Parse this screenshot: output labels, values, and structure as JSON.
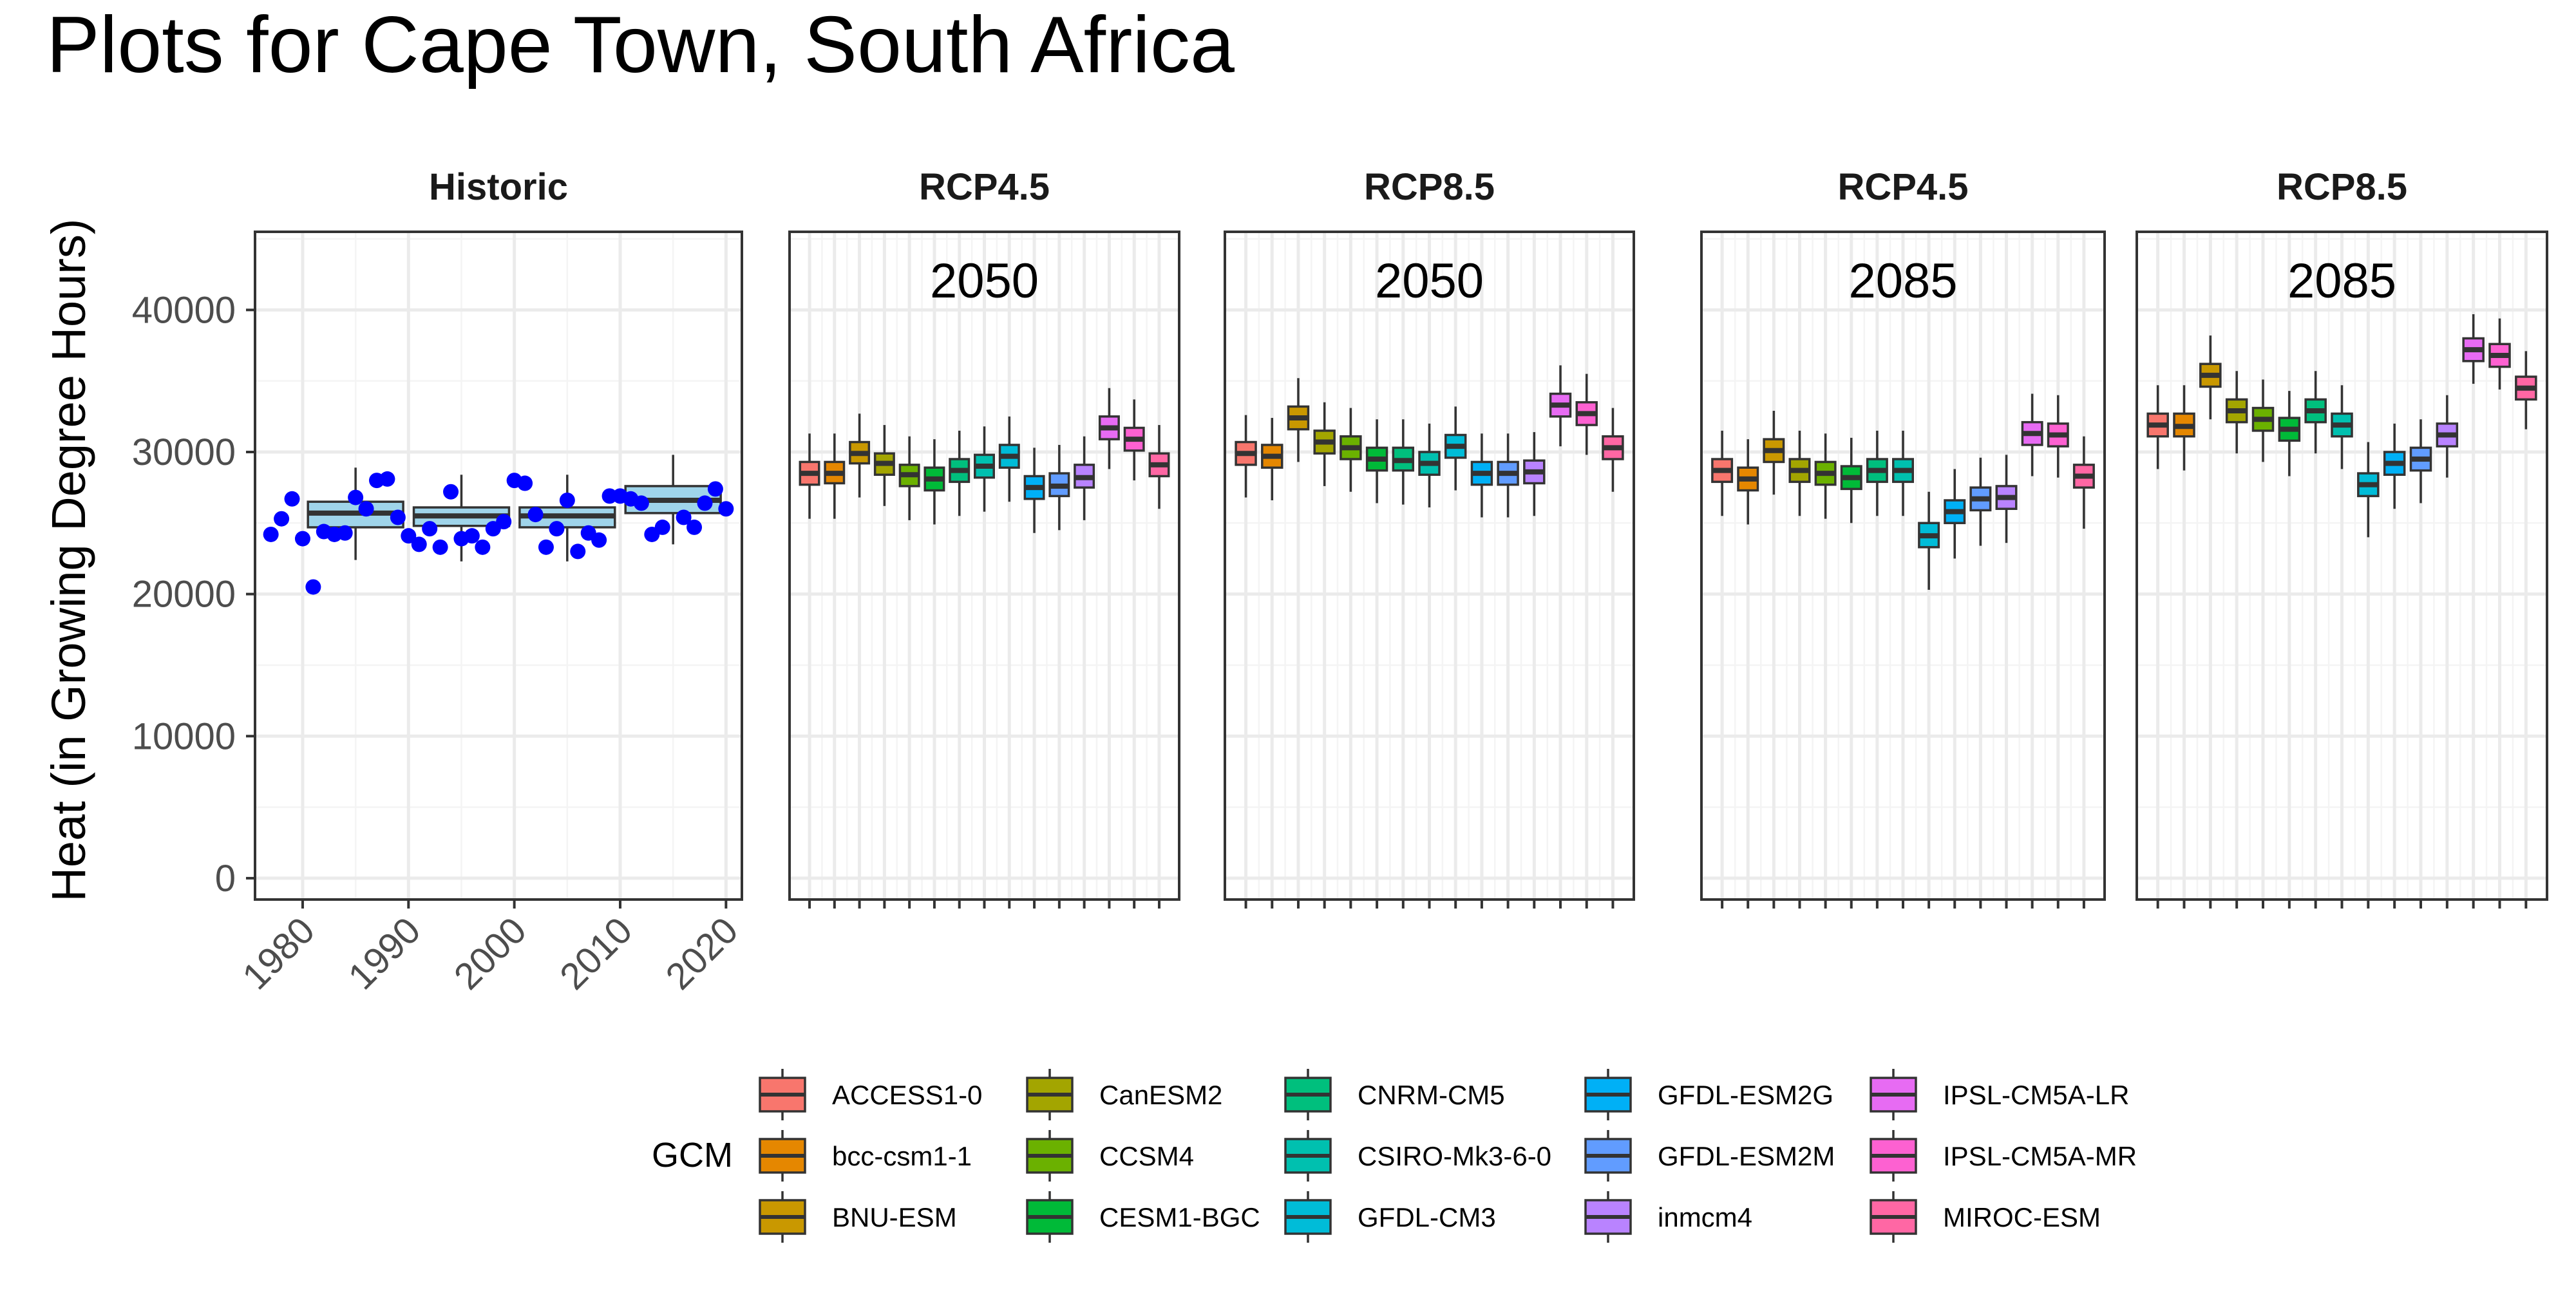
{
  "title": "Plots for Cape Town, South Africa",
  "colors": {
    "historic_box_fill": "#9fd4ea",
    "historic_point": "#0000ff",
    "grid_major": "#ebebeb",
    "grid_minor": "#f4f4f4",
    "panel_border": "#333333",
    "strip_text": "#1a1a1a",
    "axis_text": "#4d4d4d"
  },
  "chart_data": {
    "type": "box",
    "ylabel": "Heat (in Growing Degree Hours)",
    "ylim": [
      -1500,
      45500
    ],
    "y_ticks": [
      0,
      10000,
      20000,
      30000,
      40000
    ],
    "y_tick_labels": [
      "0",
      "10000",
      "20000",
      "30000",
      "40000"
    ],
    "grid": true,
    "legend": {
      "position": "bottom",
      "title": "GCM",
      "labels": [
        "ACCESS1-0",
        "bcc-csm1-1",
        "BNU-ESM",
        "CanESM2",
        "CCSM4",
        "CESM1-BGC",
        "CNRM-CM5",
        "CSIRO-Mk3-6-0",
        "GFDL-CM3",
        "GFDL-ESM2G",
        "GFDL-ESM2M",
        "inmcm4",
        "IPSL-CM5A-LR",
        "IPSL-CM5A-MR",
        "MIROC-ESM"
      ],
      "colors": [
        "#F8766D",
        "#E58700",
        "#C99800",
        "#A3A500",
        "#6BB100",
        "#00BA38",
        "#00BF7D",
        "#00C0AF",
        "#00BCD8",
        "#00B0F6",
        "#619CFF",
        "#B983FF",
        "#E76BF3",
        "#FD61D1",
        "#FF67A4"
      ]
    },
    "panels": [
      {
        "strip": "Historic",
        "x_ticks": [
          1980,
          1990,
          2000,
          2010,
          2020
        ],
        "x_tick_labels": [
          "1980",
          "1990",
          "2000",
          "2010",
          "2020"
        ],
        "xlim": [
          1975.5,
          2021.5
        ],
        "boxes": [
          {
            "decade": 1980,
            "q1": 24700,
            "median": 25700,
            "q3": 26500,
            "lo": 22400,
            "hi": 28900
          },
          {
            "decade": 1990,
            "q1": 24800,
            "median": 25500,
            "q3": 26100,
            "lo": 22300,
            "hi": 28400
          },
          {
            "decade": 2000,
            "q1": 24700,
            "median": 25500,
            "q3": 26100,
            "lo": 22300,
            "hi": 28400
          },
          {
            "decade": 2010,
            "q1": 25700,
            "median": 26600,
            "q3": 27600,
            "lo": 23500,
            "hi": 29800
          }
        ],
        "points": [
          {
            "x": 1977,
            "y": 24200
          },
          {
            "x": 1978,
            "y": 25300
          },
          {
            "x": 1979,
            "y": 26700
          },
          {
            "x": 1980,
            "y": 23900
          },
          {
            "x": 1981,
            "y": 20500
          },
          {
            "x": 1982,
            "y": 24400
          },
          {
            "x": 1983,
            "y": 24200
          },
          {
            "x": 1984,
            "y": 24300
          },
          {
            "x": 1985,
            "y": 26800
          },
          {
            "x": 1986,
            "y": 26000
          },
          {
            "x": 1987,
            "y": 28000
          },
          {
            "x": 1988,
            "y": 28100
          },
          {
            "x": 1989,
            "y": 25400
          },
          {
            "x": 1990,
            "y": 24100
          },
          {
            "x": 1991,
            "y": 23500
          },
          {
            "x": 1992,
            "y": 24600
          },
          {
            "x": 1993,
            "y": 23300
          },
          {
            "x": 1994,
            "y": 27200
          },
          {
            "x": 1995,
            "y": 23900
          },
          {
            "x": 1996,
            "y": 24100
          },
          {
            "x": 1997,
            "y": 23300
          },
          {
            "x": 1998,
            "y": 24600
          },
          {
            "x": 1999,
            "y": 25100
          },
          {
            "x": 2000,
            "y": 28000
          },
          {
            "x": 2001,
            "y": 27800
          },
          {
            "x": 2002,
            "y": 25600
          },
          {
            "x": 2003,
            "y": 23300
          },
          {
            "x": 2004,
            "y": 24600
          },
          {
            "x": 2005,
            "y": 26600
          },
          {
            "x": 2006,
            "y": 23000
          },
          {
            "x": 2007,
            "y": 24300
          },
          {
            "x": 2008,
            "y": 23800
          },
          {
            "x": 2009,
            "y": 26900
          },
          {
            "x": 2010,
            "y": 26900
          },
          {
            "x": 2011,
            "y": 26700
          },
          {
            "x": 2012,
            "y": 26400
          },
          {
            "x": 2013,
            "y": 24200
          },
          {
            "x": 2014,
            "y": 24700
          },
          {
            "x": 2016,
            "y": 25400
          },
          {
            "x": 2017,
            "y": 24700
          },
          {
            "x": 2018,
            "y": 26400
          },
          {
            "x": 2019,
            "y": 27400
          },
          {
            "x": 2020,
            "y": 26000
          }
        ]
      },
      {
        "strip": "RCP4.5",
        "year": "2050",
        "boxes": [
          {
            "gcm": "ACCESS1-0",
            "q1": 27700,
            "median": 28500,
            "q3": 29300,
            "lo": 25300,
            "hi": 31300
          },
          {
            "gcm": "bcc-csm1-1",
            "q1": 27800,
            "median": 28500,
            "q3": 29300,
            "lo": 25300,
            "hi": 31300
          },
          {
            "gcm": "BNU-ESM",
            "q1": 29200,
            "median": 29900,
            "q3": 30700,
            "lo": 26800,
            "hi": 32700
          },
          {
            "gcm": "CanESM2",
            "q1": 28400,
            "median": 29200,
            "q3": 29900,
            "lo": 26200,
            "hi": 31900
          },
          {
            "gcm": "CCSM4",
            "q1": 27600,
            "median": 28400,
            "q3": 29100,
            "lo": 25200,
            "hi": 31100
          },
          {
            "gcm": "CESM1-BGC",
            "q1": 27300,
            "median": 28100,
            "q3": 28900,
            "lo": 24900,
            "hi": 30900
          },
          {
            "gcm": "CNRM-CM5",
            "q1": 27900,
            "median": 28700,
            "q3": 29500,
            "lo": 25500,
            "hi": 31500
          },
          {
            "gcm": "CSIRO-Mk3-6-0",
            "q1": 28200,
            "median": 29000,
            "q3": 29800,
            "lo": 25800,
            "hi": 31800
          },
          {
            "gcm": "GFDL-CM3",
            "q1": 28900,
            "median": 29700,
            "q3": 30500,
            "lo": 26500,
            "hi": 32500
          },
          {
            "gcm": "GFDL-ESM2G",
            "q1": 26700,
            "median": 27500,
            "q3": 28300,
            "lo": 24300,
            "hi": 30300
          },
          {
            "gcm": "GFDL-ESM2M",
            "q1": 26900,
            "median": 27600,
            "q3": 28500,
            "lo": 24500,
            "hi": 30500
          },
          {
            "gcm": "inmcm4",
            "q1": 27500,
            "median": 28200,
            "q3": 29100,
            "lo": 25200,
            "hi": 31100
          },
          {
            "gcm": "IPSL-CM5A-LR",
            "q1": 30900,
            "median": 31700,
            "q3": 32500,
            "lo": 28800,
            "hi": 34500
          },
          {
            "gcm": "IPSL-CM5A-MR",
            "q1": 30100,
            "median": 30900,
            "q3": 31700,
            "lo": 28000,
            "hi": 33700
          },
          {
            "gcm": "MIROC-ESM",
            "q1": 28300,
            "median": 29100,
            "q3": 29900,
            "lo": 26000,
            "hi": 31900
          }
        ]
      },
      {
        "strip": "RCP8.5",
        "year": "2050",
        "boxes": [
          {
            "gcm": "ACCESS1-0",
            "q1": 29100,
            "median": 29900,
            "q3": 30700,
            "lo": 26800,
            "hi": 32600
          },
          {
            "gcm": "bcc-csm1-1",
            "q1": 28900,
            "median": 29700,
            "q3": 30500,
            "lo": 26600,
            "hi": 32400
          },
          {
            "gcm": "BNU-ESM",
            "q1": 31600,
            "median": 32400,
            "q3": 33200,
            "lo": 29300,
            "hi": 35200
          },
          {
            "gcm": "CanESM2",
            "q1": 29900,
            "median": 30700,
            "q3": 31500,
            "lo": 27600,
            "hi": 33500
          },
          {
            "gcm": "CCSM4",
            "q1": 29500,
            "median": 30300,
            "q3": 31100,
            "lo": 27200,
            "hi": 33100
          },
          {
            "gcm": "CESM1-BGC",
            "q1": 28700,
            "median": 29500,
            "q3": 30300,
            "lo": 26400,
            "hi": 32300
          },
          {
            "gcm": "CNRM-CM5",
            "q1": 28700,
            "median": 29400,
            "q3": 30300,
            "lo": 26300,
            "hi": 32300
          },
          {
            "gcm": "CSIRO-Mk3-6-0",
            "q1": 28400,
            "median": 29200,
            "q3": 30000,
            "lo": 26100,
            "hi": 32000
          },
          {
            "gcm": "GFDL-CM3",
            "q1": 29600,
            "median": 30400,
            "q3": 31200,
            "lo": 27300,
            "hi": 33200
          },
          {
            "gcm": "GFDL-ESM2G",
            "q1": 27700,
            "median": 28500,
            "q3": 29300,
            "lo": 25400,
            "hi": 31300
          },
          {
            "gcm": "GFDL-ESM2M",
            "q1": 27700,
            "median": 28500,
            "q3": 29300,
            "lo": 25400,
            "hi": 31300
          },
          {
            "gcm": "inmcm4",
            "q1": 27800,
            "median": 28600,
            "q3": 29400,
            "lo": 25500,
            "hi": 31400
          },
          {
            "gcm": "IPSL-CM5A-LR",
            "q1": 32500,
            "median": 33300,
            "q3": 34100,
            "lo": 30400,
            "hi": 36100
          },
          {
            "gcm": "IPSL-CM5A-MR",
            "q1": 31900,
            "median": 32700,
            "q3": 33500,
            "lo": 29800,
            "hi": 35500
          },
          {
            "gcm": "MIROC-ESM",
            "q1": 29500,
            "median": 30300,
            "q3": 31100,
            "lo": 27200,
            "hi": 33100
          }
        ]
      },
      {
        "strip": "RCP4.5",
        "year": "2085",
        "boxes": [
          {
            "gcm": "ACCESS1-0",
            "q1": 27900,
            "median": 28700,
            "q3": 29500,
            "lo": 25500,
            "hi": 31500
          },
          {
            "gcm": "bcc-csm1-1",
            "q1": 27300,
            "median": 28100,
            "q3": 28900,
            "lo": 24900,
            "hi": 30900
          },
          {
            "gcm": "BNU-ESM",
            "q1": 29300,
            "median": 30100,
            "q3": 30900,
            "lo": 27000,
            "hi": 32900
          },
          {
            "gcm": "CanESM2",
            "q1": 27900,
            "median": 28700,
            "q3": 29500,
            "lo": 25500,
            "hi": 31500
          },
          {
            "gcm": "CCSM4",
            "q1": 27700,
            "median": 28500,
            "q3": 29300,
            "lo": 25300,
            "hi": 31300
          },
          {
            "gcm": "CESM1-BGC",
            "q1": 27400,
            "median": 28200,
            "q3": 29000,
            "lo": 25000,
            "hi": 31000
          },
          {
            "gcm": "CNRM-CM5",
            "q1": 27900,
            "median": 28700,
            "q3": 29500,
            "lo": 25500,
            "hi": 31500
          },
          {
            "gcm": "CSIRO-Mk3-6-0",
            "q1": 27900,
            "median": 28700,
            "q3": 29500,
            "lo": 25500,
            "hi": 31500
          },
          {
            "gcm": "GFDL-CM3",
            "q1": 23300,
            "median": 24100,
            "q3": 25000,
            "lo": 20300,
            "hi": 27200
          },
          {
            "gcm": "GFDL-ESM2G",
            "q1": 25000,
            "median": 25800,
            "q3": 26600,
            "lo": 22500,
            "hi": 28800
          },
          {
            "gcm": "GFDL-ESM2M",
            "q1": 25900,
            "median": 26700,
            "q3": 27500,
            "lo": 23400,
            "hi": 29600
          },
          {
            "gcm": "inmcm4",
            "q1": 26000,
            "median": 26800,
            "q3": 27600,
            "lo": 23600,
            "hi": 29800
          },
          {
            "gcm": "IPSL-CM5A-LR",
            "q1": 30500,
            "median": 31300,
            "q3": 32100,
            "lo": 28300,
            "hi": 34100
          },
          {
            "gcm": "IPSL-CM5A-MR",
            "q1": 30400,
            "median": 31200,
            "q3": 32000,
            "lo": 28200,
            "hi": 34000
          },
          {
            "gcm": "MIROC-ESM",
            "q1": 27500,
            "median": 28300,
            "q3": 29100,
            "lo": 24600,
            "hi": 31100
          }
        ]
      },
      {
        "strip": "RCP8.5",
        "year": "2085",
        "boxes": [
          {
            "gcm": "ACCESS1-0",
            "q1": 31100,
            "median": 31900,
            "q3": 32700,
            "lo": 28800,
            "hi": 34700
          },
          {
            "gcm": "bcc-csm1-1",
            "q1": 31100,
            "median": 31800,
            "q3": 32700,
            "lo": 28700,
            "hi": 34700
          },
          {
            "gcm": "BNU-ESM",
            "q1": 34600,
            "median": 35400,
            "q3": 36200,
            "lo": 32300,
            "hi": 38200
          },
          {
            "gcm": "CanESM2",
            "q1": 32100,
            "median": 32900,
            "q3": 33700,
            "lo": 29900,
            "hi": 35700
          },
          {
            "gcm": "CCSM4",
            "q1": 31500,
            "median": 32300,
            "q3": 33100,
            "lo": 29300,
            "hi": 35100
          },
          {
            "gcm": "CESM1-BGC",
            "q1": 30800,
            "median": 31600,
            "q3": 32400,
            "lo": 28300,
            "hi": 34300
          },
          {
            "gcm": "CNRM-CM5",
            "q1": 32100,
            "median": 32900,
            "q3": 33700,
            "lo": 29900,
            "hi": 35700
          },
          {
            "gcm": "CSIRO-Mk3-6-0",
            "q1": 31100,
            "median": 31900,
            "q3": 32700,
            "lo": 28800,
            "hi": 34700
          },
          {
            "gcm": "GFDL-CM3",
            "q1": 26900,
            "median": 27700,
            "q3": 28500,
            "lo": 24000,
            "hi": 30700
          },
          {
            "gcm": "GFDL-ESM2G",
            "q1": 28400,
            "median": 29200,
            "q3": 30000,
            "lo": 26000,
            "hi": 32000
          },
          {
            "gcm": "GFDL-ESM2M",
            "q1": 28700,
            "median": 29500,
            "q3": 30300,
            "lo": 26400,
            "hi": 32300
          },
          {
            "gcm": "inmcm4",
            "q1": 30400,
            "median": 31200,
            "q3": 32000,
            "lo": 28200,
            "hi": 34000
          },
          {
            "gcm": "IPSL-CM5A-LR",
            "q1": 36400,
            "median": 37200,
            "q3": 38000,
            "lo": 34800,
            "hi": 39700
          },
          {
            "gcm": "IPSL-CM5A-MR",
            "q1": 36000,
            "median": 36800,
            "q3": 37600,
            "lo": 34400,
            "hi": 39400
          },
          {
            "gcm": "MIROC-ESM",
            "q1": 33700,
            "median": 34500,
            "q3": 35300,
            "lo": 31600,
            "hi": 37100
          }
        ]
      }
    ]
  }
}
